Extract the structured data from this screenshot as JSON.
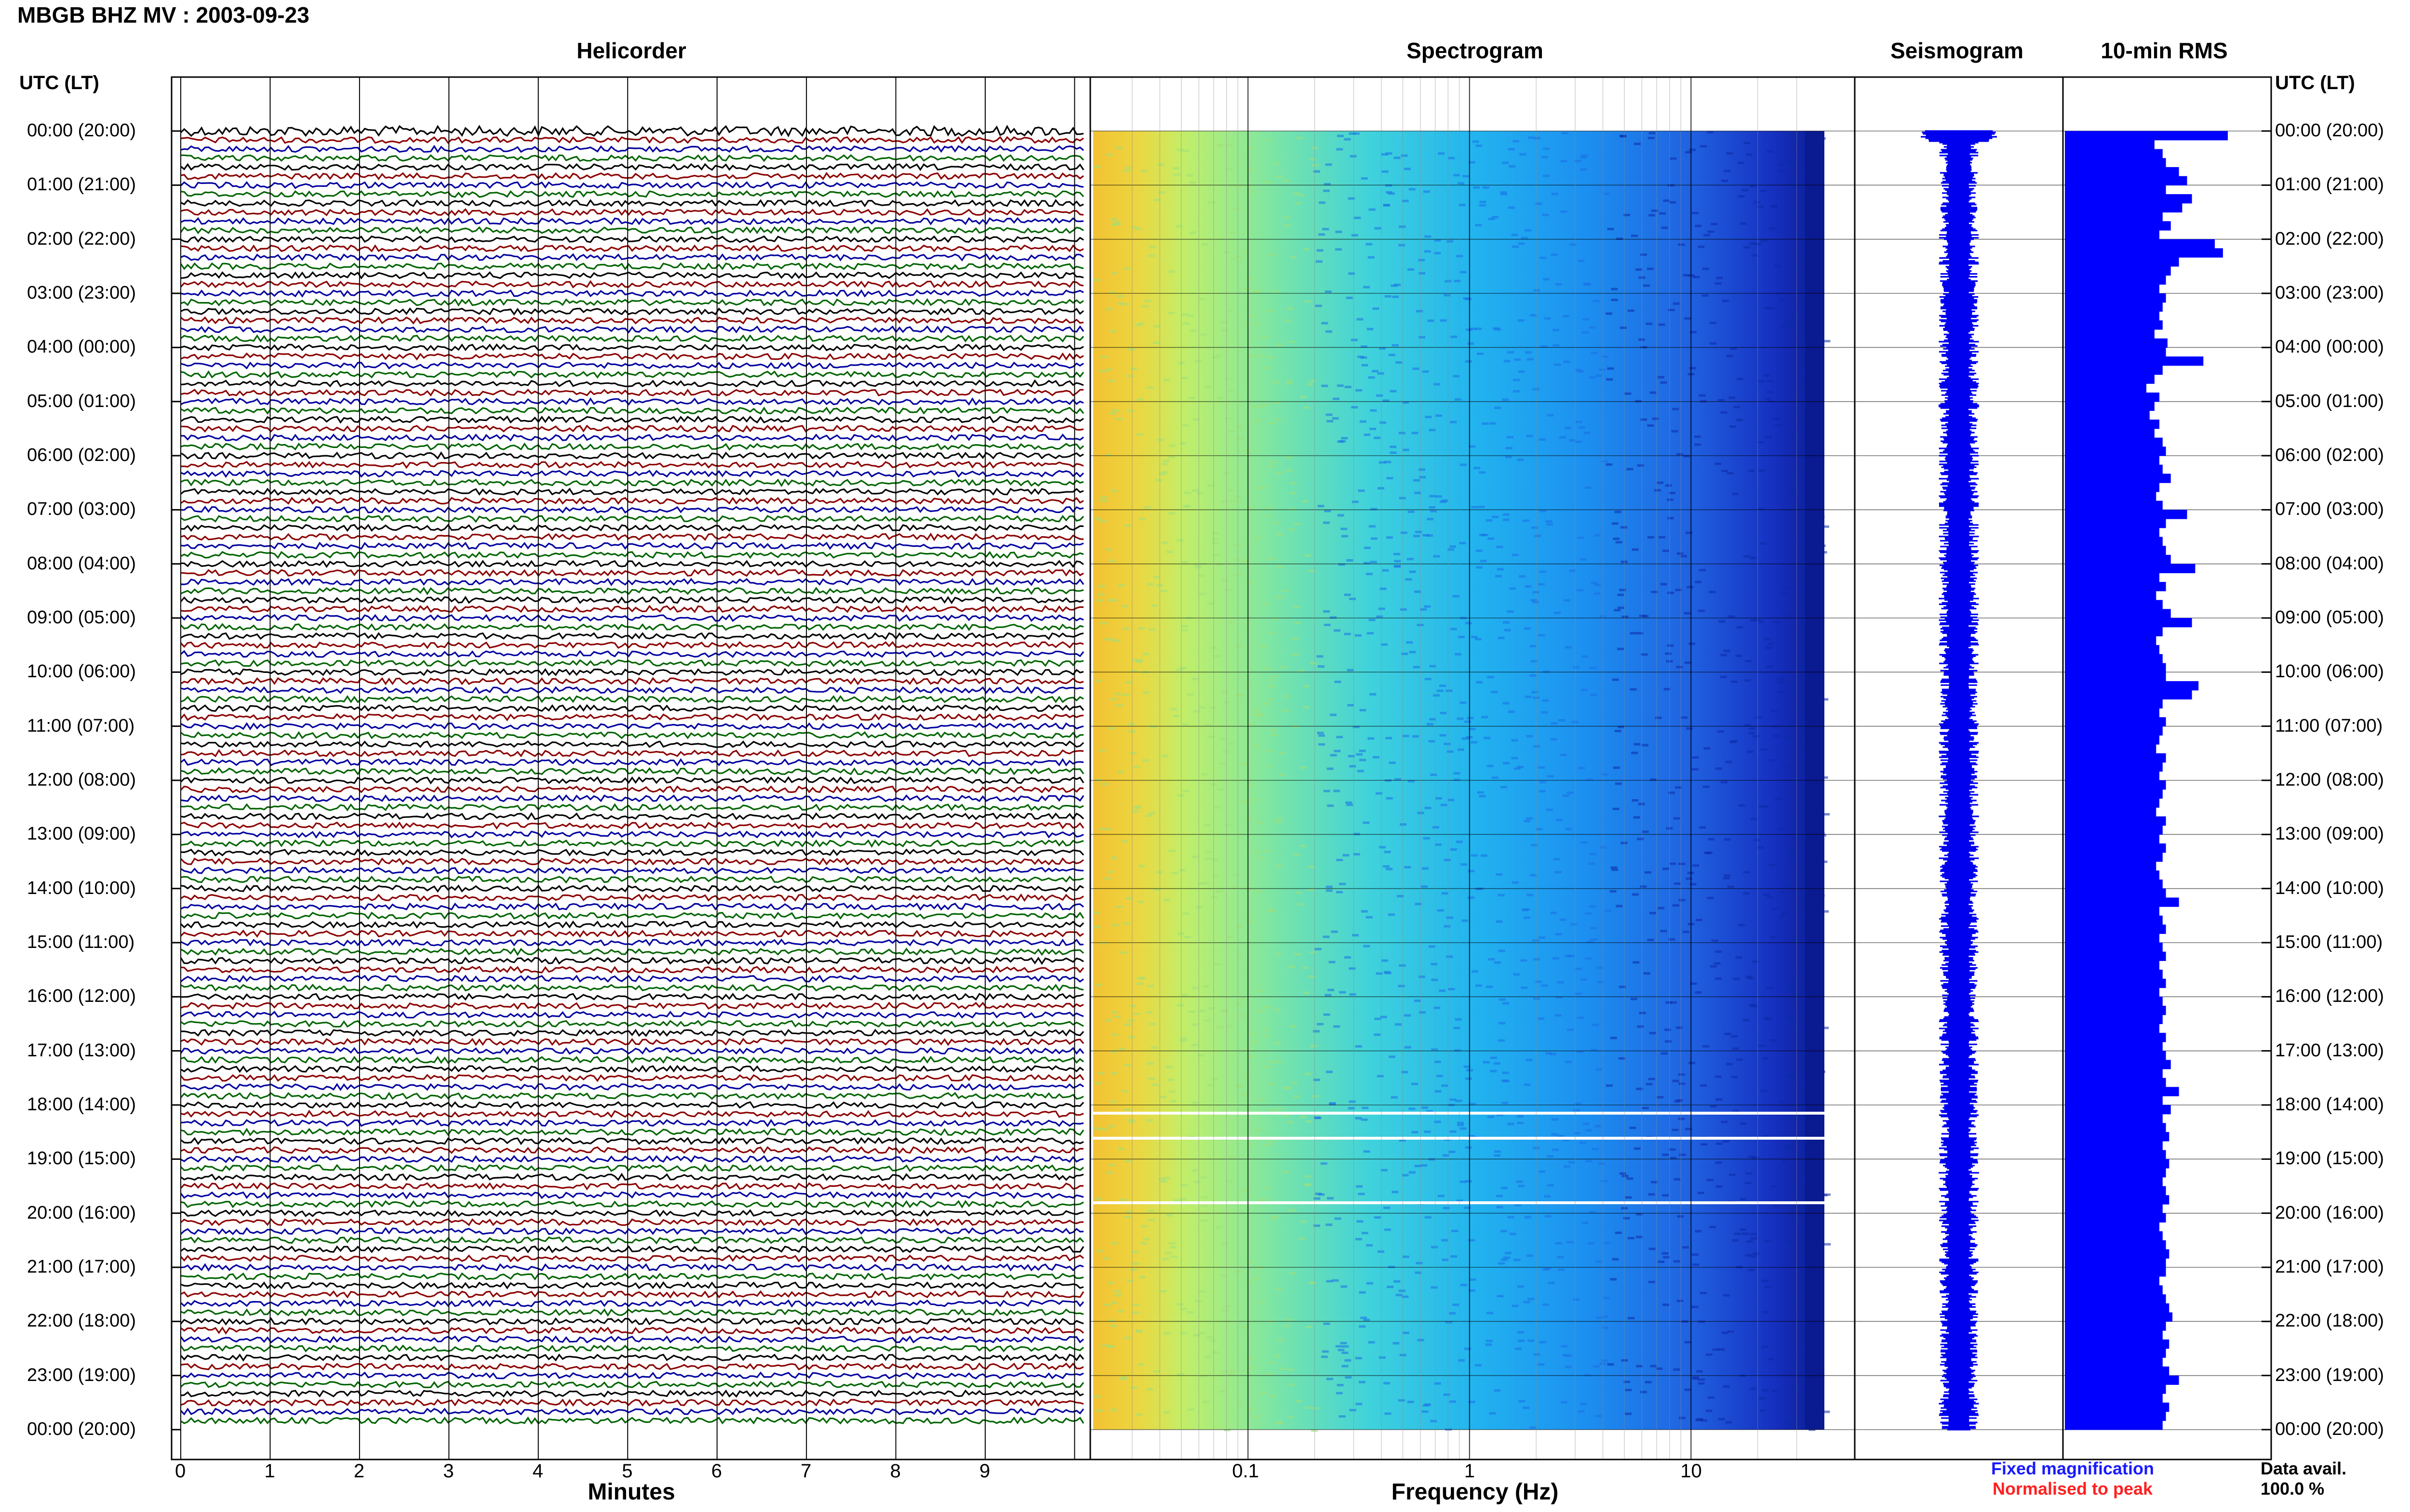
{
  "header": {
    "title": "MBGB BHZ MV : 2003-09-23"
  },
  "panels": {
    "helicorder": "Helicorder",
    "spectrogram": "Spectrogram",
    "seismogram": "Seismogram",
    "rms": "10-min RMS"
  },
  "axes": {
    "left_head": "UTC (LT)",
    "right_head": "UTC (LT)",
    "minutes_label": "Minutes",
    "frequency_label": "Frequency (Hz)",
    "minute_ticks": [
      "0",
      "1",
      "2",
      "3",
      "4",
      "5",
      "6",
      "7",
      "8",
      "9"
    ],
    "frequency_ticks": [
      "0.1",
      "1",
      "10"
    ]
  },
  "time_labels": [
    "00:00 (20:00)",
    "01:00 (21:00)",
    "02:00 (22:00)",
    "03:00 (23:00)",
    "04:00 (00:00)",
    "05:00 (01:00)",
    "06:00 (02:00)",
    "07:00 (03:00)",
    "08:00 (04:00)",
    "09:00 (05:00)",
    "10:00 (06:00)",
    "11:00 (07:00)",
    "12:00 (08:00)",
    "13:00 (09:00)",
    "14:00 (10:00)",
    "15:00 (11:00)",
    "16:00 (12:00)",
    "17:00 (13:00)",
    "18:00 (14:00)",
    "19:00 (15:00)",
    "20:00 (16:00)",
    "21:00 (17:00)",
    "22:00 (18:00)",
    "23:00 (19:00)",
    "00:00 (20:00)"
  ],
  "legend": {
    "fixed": "Fixed magnification",
    "normalised": "Normalised to peak",
    "fixed_color": "#1a1aff",
    "normalised_color": "#ff2020"
  },
  "availability": {
    "label": "Data avail.",
    "value": "100.0 %"
  },
  "colors": {
    "trace_cycle": [
      "#000000",
      "#8b0000",
      "#0000a0",
      "#006400"
    ],
    "rms_bar": "#0000ff",
    "seismogram": "#0000ee"
  },
  "chart_data": {
    "type": "bar",
    "title": "10-min RMS",
    "xlabel": "",
    "ylabel": "UTC (LT)",
    "orientation": "horizontal",
    "relative_scale": true,
    "xlim": [
      0,
      1
    ],
    "categories": [
      "00:00",
      "00:10",
      "00:20",
      "00:30",
      "00:40",
      "00:50",
      "01:00",
      "01:10",
      "01:20",
      "01:30",
      "01:40",
      "01:50",
      "02:00",
      "02:10",
      "02:20",
      "02:30",
      "02:40",
      "02:50",
      "03:00",
      "03:10",
      "03:20",
      "03:30",
      "03:40",
      "03:50",
      "04:00",
      "04:10",
      "04:20",
      "04:30",
      "04:40",
      "04:50",
      "05:00",
      "05:10",
      "05:20",
      "05:30",
      "05:40",
      "05:50",
      "06:00",
      "06:10",
      "06:20",
      "06:30",
      "06:40",
      "06:50",
      "07:00",
      "07:10",
      "07:20",
      "07:30",
      "07:40",
      "07:50",
      "08:00",
      "08:10",
      "08:20",
      "08:30",
      "08:40",
      "08:50",
      "09:00",
      "09:10",
      "09:20",
      "09:30",
      "09:40",
      "09:50",
      "10:00",
      "10:10",
      "10:20",
      "10:30",
      "10:40",
      "10:50",
      "11:00",
      "11:10",
      "11:20",
      "11:30",
      "11:40",
      "11:50",
      "12:00",
      "12:10",
      "12:20",
      "12:30",
      "12:40",
      "12:50",
      "13:00",
      "13:10",
      "13:20",
      "13:30",
      "13:40",
      "13:50",
      "14:00",
      "14:10",
      "14:20",
      "14:30",
      "14:40",
      "14:50",
      "15:00",
      "15:10",
      "15:20",
      "15:30",
      "15:40",
      "15:50",
      "16:00",
      "16:10",
      "16:20",
      "16:30",
      "16:40",
      "16:50",
      "17:00",
      "17:10",
      "17:20",
      "17:30",
      "17:40",
      "17:50",
      "18:00",
      "18:10",
      "18:20",
      "18:30",
      "18:40",
      "18:50",
      "19:00",
      "19:10",
      "19:20",
      "19:30",
      "19:40",
      "19:50",
      "20:00",
      "20:10",
      "20:20",
      "20:30",
      "20:40",
      "20:50",
      "21:00",
      "21:10",
      "21:20",
      "21:30",
      "21:40",
      "21:50",
      "22:00",
      "22:10",
      "22:20",
      "22:30",
      "22:40",
      "22:50",
      "23:00",
      "23:10",
      "23:20",
      "23:30",
      "23:40",
      "23:50"
    ],
    "values": [
      1.0,
      0.55,
      0.6,
      0.62,
      0.7,
      0.75,
      0.62,
      0.78,
      0.72,
      0.6,
      0.65,
      0.58,
      0.92,
      0.97,
      0.7,
      0.65,
      0.62,
      0.58,
      0.62,
      0.6,
      0.58,
      0.6,
      0.55,
      0.63,
      0.62,
      0.85,
      0.6,
      0.55,
      0.5,
      0.58,
      0.55,
      0.52,
      0.58,
      0.55,
      0.6,
      0.62,
      0.58,
      0.6,
      0.65,
      0.58,
      0.56,
      0.6,
      0.75,
      0.62,
      0.58,
      0.6,
      0.62,
      0.65,
      0.8,
      0.58,
      0.62,
      0.56,
      0.6,
      0.65,
      0.78,
      0.6,
      0.56,
      0.58,
      0.6,
      0.62,
      0.62,
      0.82,
      0.78,
      0.6,
      0.58,
      0.62,
      0.6,
      0.58,
      0.56,
      0.62,
      0.6,
      0.58,
      0.62,
      0.6,
      0.58,
      0.56,
      0.62,
      0.6,
      0.58,
      0.62,
      0.6,
      0.56,
      0.58,
      0.6,
      0.62,
      0.7,
      0.58,
      0.6,
      0.62,
      0.58,
      0.6,
      0.62,
      0.58,
      0.6,
      0.62,
      0.58,
      0.6,
      0.62,
      0.6,
      0.58,
      0.62,
      0.6,
      0.62,
      0.65,
      0.6,
      0.62,
      0.7,
      0.6,
      0.65,
      0.6,
      0.62,
      0.64,
      0.6,
      0.62,
      0.64,
      0.62,
      0.6,
      0.62,
      0.64,
      0.6,
      0.62,
      0.58,
      0.6,
      0.62,
      0.64,
      0.62,
      0.62,
      0.58,
      0.6,
      0.62,
      0.64,
      0.66,
      0.62,
      0.6,
      0.64,
      0.62,
      0.6,
      0.64,
      0.7,
      0.62,
      0.6,
      0.64,
      0.62,
      0.6
    ]
  }
}
